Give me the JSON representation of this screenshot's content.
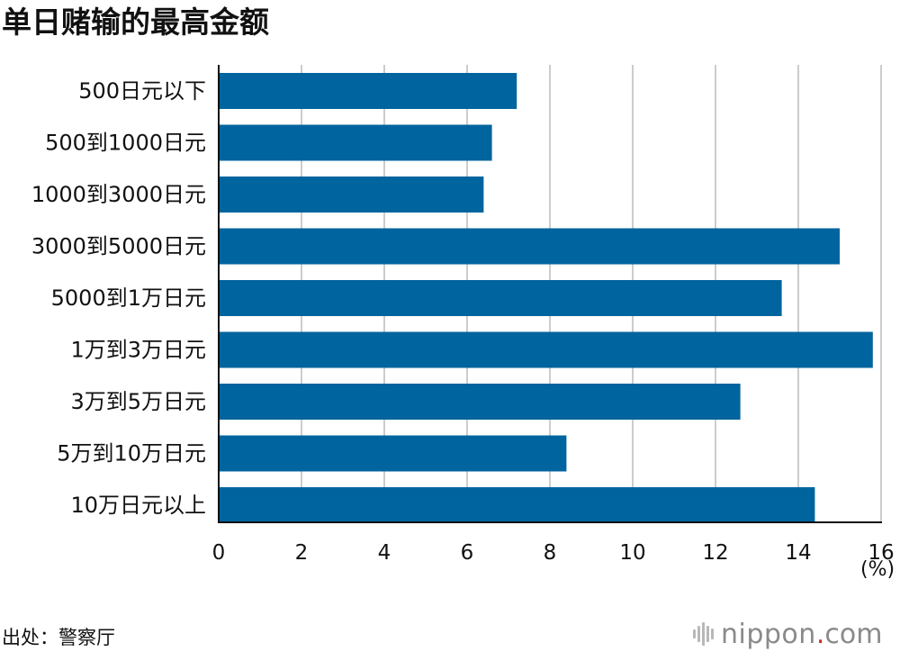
{
  "title": "单日赌输的最高金额",
  "unit": "(%)",
  "source": "出处：警察厅",
  "brand": {
    "name": "nippon",
    "dot": ".",
    "tld": "com"
  },
  "colors": {
    "bar": "#00649e",
    "grid": "#cccccc",
    "axis": "#111111"
  },
  "chart_data": {
    "type": "bar",
    "orientation": "horizontal",
    "title": "单日赌输的最高金额",
    "xlabel": "(%)",
    "ylabel": "",
    "categories": [
      "500日元以下",
      "500到1000日元",
      "1000到3000日元",
      "3000到5000日元",
      "5000到1万日元",
      "1万到3万日元",
      "3万到5万日元",
      "5万到10万日元",
      "10万日元以上"
    ],
    "values": [
      7.2,
      6.6,
      6.4,
      15.0,
      13.6,
      15.8,
      12.6,
      8.4,
      14.4
    ],
    "xlim": [
      0,
      16
    ],
    "ticks": [
      0,
      2,
      4,
      6,
      8,
      10,
      12,
      14,
      16
    ],
    "tick_labels": [
      "0",
      "2",
      "4",
      "6",
      "8",
      "10",
      "12",
      "14",
      "16"
    ],
    "grid": true,
    "legend": "none"
  }
}
